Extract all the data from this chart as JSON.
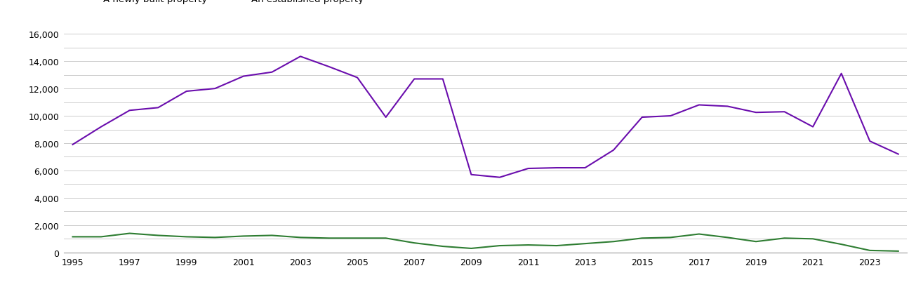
{
  "years": [
    1995,
    1996,
    1997,
    1998,
    1999,
    2000,
    2001,
    2002,
    2003,
    2004,
    2005,
    2006,
    2007,
    2008,
    2009,
    2010,
    2011,
    2012,
    2013,
    2014,
    2015,
    2016,
    2017,
    2018,
    2019,
    2020,
    2021,
    2022,
    2023,
    2024
  ],
  "new_homes": [
    1150,
    1150,
    1400,
    1250,
    1150,
    1100,
    1200,
    1250,
    1100,
    1050,
    1050,
    1050,
    700,
    450,
    300,
    500,
    550,
    500,
    650,
    800,
    1050,
    1100,
    1350,
    1100,
    800,
    1050,
    1000,
    600,
    150,
    100
  ],
  "established_homes": [
    7900,
    9200,
    10400,
    10600,
    11800,
    12000,
    12900,
    13200,
    14350,
    13600,
    12800,
    9900,
    12700,
    12700,
    5700,
    5500,
    6150,
    6200,
    6200,
    7500,
    9900,
    10000,
    10800,
    10700,
    10250,
    10300,
    9200,
    13100,
    8150,
    7200
  ],
  "new_color": "#2e7d32",
  "established_color": "#6a0dad",
  "background_color": "#ffffff",
  "grid_color": "#cccccc",
  "ylim": [
    0,
    16000
  ],
  "yticks_major": [
    0,
    2000,
    4000,
    6000,
    8000,
    10000,
    12000,
    14000,
    16000
  ],
  "yticks_minor": [
    1000,
    3000,
    5000,
    7000,
    9000,
    11000,
    13000,
    15000
  ],
  "xtick_years": [
    1995,
    1997,
    1999,
    2001,
    2003,
    2005,
    2007,
    2009,
    2011,
    2013,
    2015,
    2017,
    2019,
    2021,
    2023
  ],
  "linewidth": 1.5
}
